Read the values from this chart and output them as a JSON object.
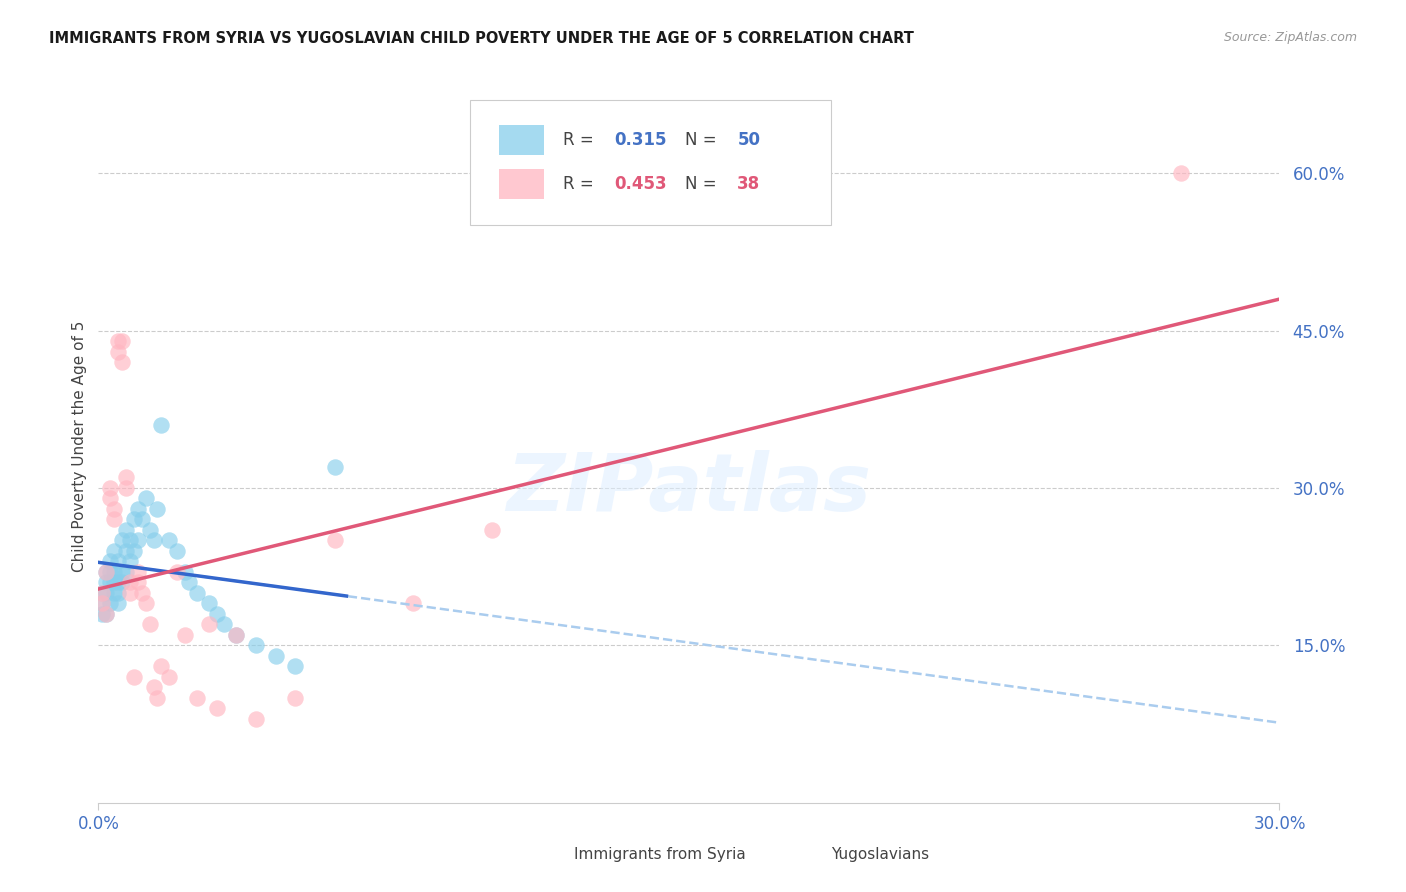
{
  "title": "IMMIGRANTS FROM SYRIA VS YUGOSLAVIAN CHILD POVERTY UNDER THE AGE OF 5 CORRELATION CHART",
  "source": "Source: ZipAtlas.com",
  "ylabel": "Child Poverty Under the Age of 5",
  "xlim": [
    0.0,
    0.3
  ],
  "ylim": [
    0.0,
    0.68
  ],
  "xtick_positions": [
    0.0,
    0.3
  ],
  "xticklabels": [
    "0.0%",
    "30.0%"
  ],
  "yticks_right": [
    0.15,
    0.3,
    0.45,
    0.6
  ],
  "ytick_labels_right": [
    "15.0%",
    "30.0%",
    "45.0%",
    "60.0%"
  ],
  "r_syria": 0.315,
  "n_syria": 50,
  "r_yugoslav": 0.453,
  "n_yugoslav": 38,
  "syria_color": "#87CEEB",
  "yugoslav_color": "#FFB6C1",
  "syria_line_color": "#3366CC",
  "yugoslav_line_color": "#E05878",
  "syria_dash_color": "#AACCEE",
  "watermark_color": "#DDEEFF",
  "background_color": "#FFFFFF",
  "grid_color": "#CCCCCC",
  "axis_label_color": "#4472C4",
  "title_color": "#1A1A1A",
  "source_color": "#999999",
  "legend_r_color_blue": "#4472C4",
  "legend_r_color_pink": "#E05878",
  "legend_n_color_blue": "#4472C4",
  "legend_n_color_pink": "#E05878",
  "syria_x": [
    0.001,
    0.001,
    0.001,
    0.002,
    0.002,
    0.002,
    0.002,
    0.003,
    0.003,
    0.003,
    0.003,
    0.004,
    0.004,
    0.004,
    0.004,
    0.005,
    0.005,
    0.005,
    0.005,
    0.006,
    0.006,
    0.006,
    0.007,
    0.007,
    0.007,
    0.008,
    0.008,
    0.009,
    0.009,
    0.01,
    0.01,
    0.011,
    0.012,
    0.013,
    0.014,
    0.015,
    0.016,
    0.018,
    0.02,
    0.022,
    0.023,
    0.025,
    0.028,
    0.03,
    0.032,
    0.035,
    0.04,
    0.045,
    0.05,
    0.06
  ],
  "syria_y": [
    0.2,
    0.19,
    0.18,
    0.22,
    0.21,
    0.2,
    0.18,
    0.23,
    0.22,
    0.21,
    0.19,
    0.24,
    0.22,
    0.21,
    0.2,
    0.23,
    0.21,
    0.2,
    0.19,
    0.25,
    0.22,
    0.21,
    0.26,
    0.24,
    0.22,
    0.25,
    0.23,
    0.27,
    0.24,
    0.28,
    0.25,
    0.27,
    0.29,
    0.26,
    0.25,
    0.28,
    0.36,
    0.25,
    0.24,
    0.22,
    0.21,
    0.2,
    0.19,
    0.18,
    0.17,
    0.16,
    0.15,
    0.14,
    0.13,
    0.32
  ],
  "yugoslav_x": [
    0.001,
    0.001,
    0.002,
    0.002,
    0.003,
    0.003,
    0.004,
    0.004,
    0.005,
    0.005,
    0.006,
    0.006,
    0.007,
    0.007,
    0.008,
    0.008,
    0.009,
    0.01,
    0.01,
    0.011,
    0.012,
    0.013,
    0.014,
    0.015,
    0.016,
    0.018,
    0.02,
    0.022,
    0.025,
    0.028,
    0.03,
    0.035,
    0.04,
    0.05,
    0.06,
    0.08,
    0.1,
    0.275
  ],
  "yugoslav_y": [
    0.2,
    0.19,
    0.22,
    0.18,
    0.3,
    0.29,
    0.28,
    0.27,
    0.44,
    0.43,
    0.44,
    0.42,
    0.31,
    0.3,
    0.21,
    0.2,
    0.12,
    0.22,
    0.21,
    0.2,
    0.19,
    0.17,
    0.11,
    0.1,
    0.13,
    0.12,
    0.22,
    0.16,
    0.1,
    0.17,
    0.09,
    0.16,
    0.08,
    0.1,
    0.25,
    0.19,
    0.26,
    0.6
  ]
}
